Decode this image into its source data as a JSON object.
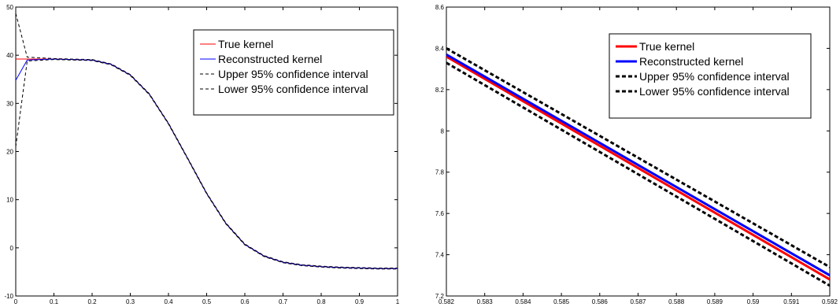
{
  "chart_data": [
    {
      "type": "line",
      "title": "",
      "xlabel": "",
      "ylabel": "",
      "xlim": [
        0,
        1
      ],
      "ylim": [
        -10,
        50
      ],
      "xticks": [
        0,
        0.1,
        0.2,
        0.3,
        0.4,
        0.5,
        0.6,
        0.7,
        0.8,
        0.9,
        1
      ],
      "xtick_labels": [
        "0",
        "0.1",
        "0.2",
        "0.3",
        "0.4",
        "0.5",
        "0.6",
        "0.7",
        "0.8",
        "0.9",
        "1"
      ],
      "yticks": [
        -10,
        0,
        10,
        20,
        30,
        40,
        50
      ],
      "ytick_labels": [
        "-10",
        "0",
        "10",
        "20",
        "30",
        "40",
        "50"
      ],
      "grid": false,
      "legend_position": "top-right",
      "series": [
        {
          "name": "True kernel",
          "color": "#ff0000",
          "style": "solid",
          "x": [
            0,
            0.03,
            0.1,
            0.2,
            0.25,
            0.3,
            0.35,
            0.4,
            0.45,
            0.5,
            0.55,
            0.6,
            0.65,
            0.7,
            0.75,
            0.8,
            0.85,
            0.9,
            0.95,
            1
          ],
          "y": [
            39.2,
            39.2,
            39.2,
            39.0,
            38.1,
            35.9,
            31.9,
            25.8,
            18.6,
            11.3,
            5.1,
            0.7,
            -1.7,
            -3.0,
            -3.6,
            -3.9,
            -4.1,
            -4.2,
            -4.3,
            -4.3
          ]
        },
        {
          "name": "Reconstructed kernel",
          "color": "#0000ff",
          "style": "solid",
          "x": [
            0,
            0.03,
            0.1,
            0.2,
            0.25,
            0.3,
            0.35,
            0.4,
            0.45,
            0.5,
            0.55,
            0.6,
            0.65,
            0.7,
            0.75,
            0.8,
            0.85,
            0.9,
            0.95,
            1
          ],
          "y": [
            34.8,
            39.0,
            39.2,
            39.0,
            38.1,
            35.9,
            31.9,
            25.8,
            18.6,
            11.3,
            5.1,
            0.7,
            -1.7,
            -3.0,
            -3.6,
            -3.9,
            -4.1,
            -4.2,
            -4.3,
            -4.3
          ]
        },
        {
          "name": "Upper 95% confidence interval",
          "color": "#000000",
          "style": "dashed",
          "x": [
            0,
            0.03,
            0.1,
            0.2,
            0.25,
            0.3,
            0.35,
            0.4,
            0.45,
            0.5,
            0.55,
            0.6,
            0.65,
            0.7,
            0.75,
            0.8,
            0.85,
            0.9,
            0.95,
            1
          ],
          "y": [
            48.7,
            39.6,
            39.3,
            39.1,
            38.2,
            36.0,
            32.0,
            25.9,
            18.7,
            11.4,
            5.2,
            0.8,
            -1.6,
            -2.9,
            -3.5,
            -3.8,
            -4.0,
            -4.1,
            -4.2,
            -4.2
          ]
        },
        {
          "name": "Lower 95% confidence interval",
          "color": "#000000",
          "style": "dashed",
          "x": [
            0,
            0.03,
            0.1,
            0.2,
            0.25,
            0.3,
            0.35,
            0.4,
            0.45,
            0.5,
            0.55,
            0.6,
            0.65,
            0.7,
            0.75,
            0.8,
            0.85,
            0.9,
            0.95,
            1
          ],
          "y": [
            21.0,
            38.8,
            39.1,
            38.9,
            38.0,
            35.8,
            31.8,
            25.7,
            18.5,
            11.2,
            5.0,
            0.6,
            -1.8,
            -3.1,
            -3.7,
            -4.0,
            -4.2,
            -4.3,
            -4.4,
            -4.4
          ]
        }
      ]
    },
    {
      "type": "line",
      "title": "",
      "xlabel": "",
      "ylabel": "",
      "xlim": [
        0.582,
        0.592
      ],
      "ylim": [
        7.2,
        8.6
      ],
      "xticks": [
        0.582,
        0.583,
        0.584,
        0.585,
        0.586,
        0.587,
        0.588,
        0.589,
        0.59,
        0.591,
        0.592
      ],
      "xtick_labels": [
        "0.582",
        "0.583",
        "0.584",
        "0.585",
        "0.586",
        "0.587",
        "0.588",
        "0.589",
        "0.59",
        "0.591",
        "0.592"
      ],
      "yticks": [
        7.2,
        7.4,
        7.6,
        7.8,
        8,
        8.2,
        8.4,
        8.6
      ],
      "ytick_labels": [
        "7.2",
        "7.4",
        "7.6",
        "7.8",
        "8",
        "8.2",
        "8.4",
        "8.6"
      ],
      "grid": false,
      "legend_position": "top-right",
      "series": [
        {
          "name": "True kernel",
          "color": "#ff0000",
          "style": "solid",
          "x": [
            0.582,
            0.592
          ],
          "y": [
            8.36,
            7.28
          ]
        },
        {
          "name": "Reconstructed kernel",
          "color": "#0000ff",
          "style": "solid",
          "x": [
            0.582,
            0.592
          ],
          "y": [
            8.37,
            7.3
          ]
        },
        {
          "name": "Upper 95% confidence interval",
          "color": "#000000",
          "style": "dotted",
          "x": [
            0.582,
            0.592
          ],
          "y": [
            8.4,
            7.34
          ]
        },
        {
          "name": "Lower 95% confidence interval",
          "color": "#000000",
          "style": "dotted",
          "x": [
            0.582,
            0.592
          ],
          "y": [
            8.33,
            7.25
          ]
        }
      ]
    }
  ]
}
